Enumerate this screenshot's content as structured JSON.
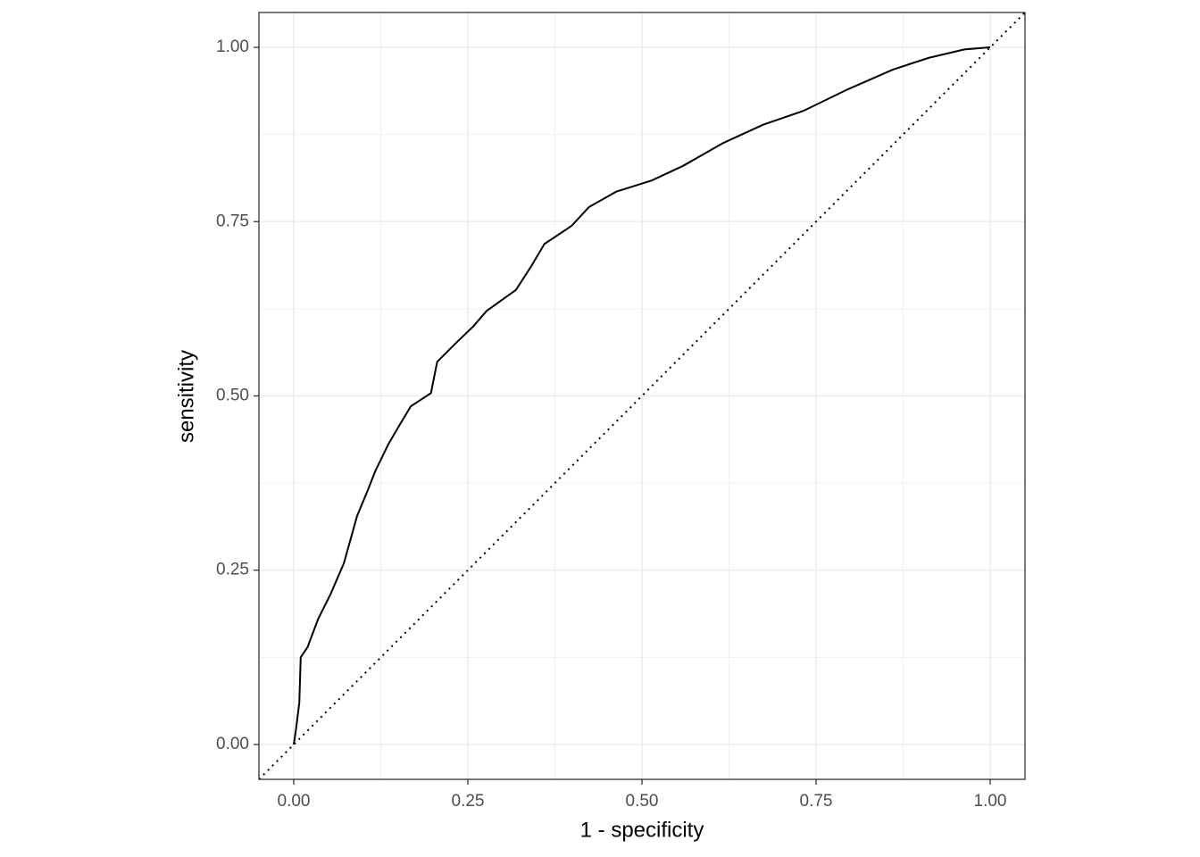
{
  "chart_data": {
    "type": "line",
    "xlabel": "1 - specificity",
    "ylabel": "sensitivity",
    "xlim": [
      -0.05,
      1.05
    ],
    "ylim": [
      -0.05,
      1.05
    ],
    "xticks": [
      {
        "value": 0,
        "label": "0.00"
      },
      {
        "value": 0.25,
        "label": "0.25"
      },
      {
        "value": 0.5,
        "label": "0.50"
      },
      {
        "value": 0.75,
        "label": "0.75"
      },
      {
        "value": 1,
        "label": "1.00"
      }
    ],
    "yticks": [
      {
        "value": 0,
        "label": "0.00"
      },
      {
        "value": 0.25,
        "label": "0.25"
      },
      {
        "value": 0.5,
        "label": "0.50"
      },
      {
        "value": 0.75,
        "label": "0.75"
      },
      {
        "value": 1,
        "label": "1.00"
      }
    ],
    "xminorticks": [
      0.125,
      0.375,
      0.625,
      0.875
    ],
    "yminorticks": [
      0.125,
      0.375,
      0.625,
      0.875
    ],
    "grid": true,
    "color": "#000000",
    "x": [
      0,
      0.003,
      0.008,
      0.01,
      0.02,
      0.035,
      0.053,
      0.072,
      0.091,
      0.106,
      0.117,
      0.136,
      0.153,
      0.168,
      0.197,
      0.206,
      0.232,
      0.258,
      0.277,
      0.319,
      0.341,
      0.36,
      0.399,
      0.424,
      0.463,
      0.514,
      0.559,
      0.617,
      0.674,
      0.732,
      0.796,
      0.86,
      0.912,
      0.963,
      1
    ],
    "values": [
      0,
      0.02,
      0.06,
      0.125,
      0.14,
      0.18,
      0.216,
      0.26,
      0.328,
      0.364,
      0.392,
      0.431,
      0.46,
      0.485,
      0.504,
      0.549,
      0.575,
      0.6,
      0.622,
      0.652,
      0.686,
      0.718,
      0.744,
      0.771,
      0.793,
      0.809,
      0.83,
      0.863,
      0.889,
      0.909,
      0.94,
      0.968,
      0.985,
      0.997,
      1
    ]
  }
}
